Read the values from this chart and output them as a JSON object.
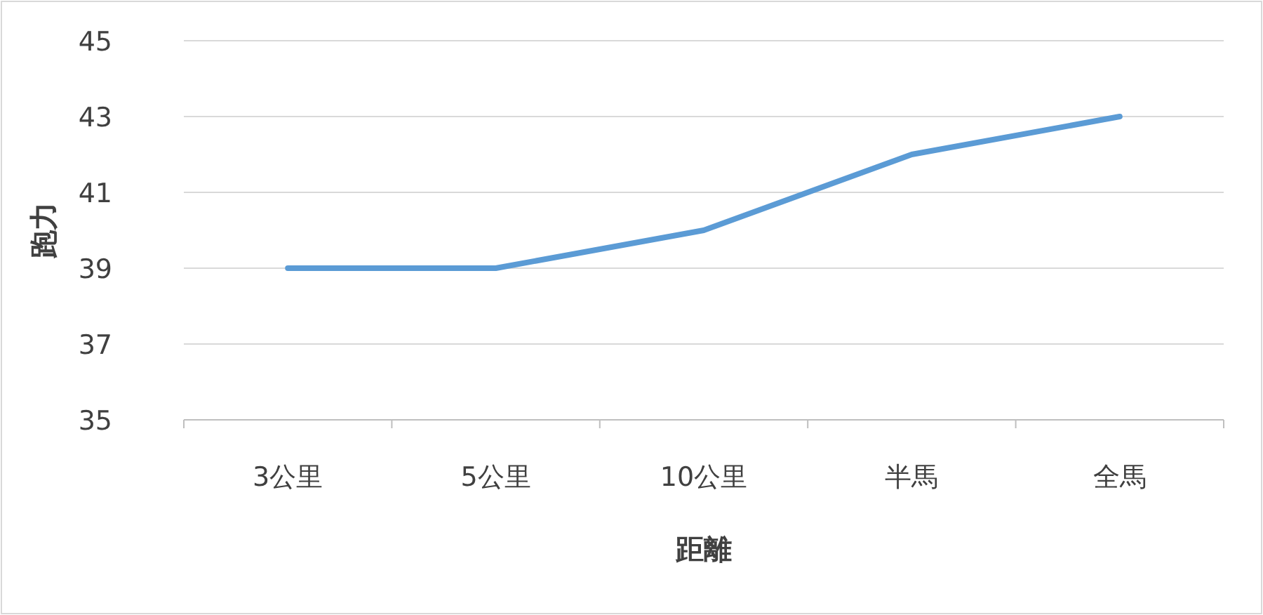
{
  "chart_data": {
    "type": "line",
    "xlabel": "距離",
    "ylabel": "跑力",
    "categories": [
      "3公里",
      "5公里",
      "10公里",
      "半馬",
      "全馬"
    ],
    "series": [
      {
        "color": "#5b9bd5",
        "values": [
          39,
          39,
          40,
          42,
          43
        ]
      }
    ],
    "ylim": [
      35,
      45
    ],
    "yticks": [
      35,
      37,
      39,
      41,
      43,
      45
    ],
    "grid": "y",
    "marker": "none",
    "line_style": "solid"
  }
}
